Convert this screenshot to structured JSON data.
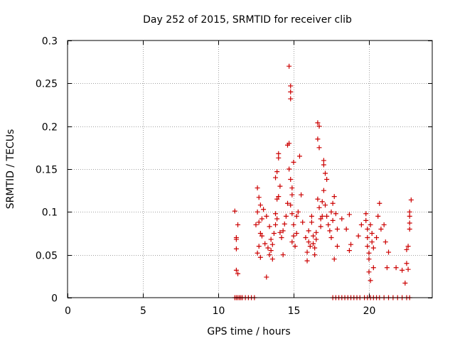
{
  "chart_data": {
    "type": "scatter",
    "title": "Day 252 of 2015, SRMTID for receiver clib",
    "xlabel": "GPS time / hours",
    "ylabel": "SRMTID / TECUs",
    "xlim": [
      0,
      24.2
    ],
    "ylim": [
      0,
      0.3
    ],
    "x_ticks": [
      0,
      5,
      10,
      15,
      20
    ],
    "y_ticks": [
      0,
      0.05,
      0.1,
      0.15,
      0.2,
      0.25,
      0.3
    ],
    "x_tick_labels": [
      "0",
      "5",
      "10",
      "15",
      "20"
    ],
    "y_tick_labels": [
      "0",
      "0.05",
      "0.1",
      "0.15",
      "0.2",
      "0.25",
      "0.3"
    ],
    "grid": true,
    "marker": "+",
    "colors": {
      "points": "#cc0000",
      "grid": "#a0a0a0",
      "axes": "#000000"
    },
    "series": [
      {
        "name": "SRMTID",
        "points": [
          [
            11.1,
            0.101
          ],
          [
            11.2,
            0.07
          ],
          [
            11.2,
            0.057
          ],
          [
            11.3,
            0.085
          ],
          [
            11.2,
            0.032
          ],
          [
            11.3,
            0.028
          ],
          [
            11.2,
            0.068
          ],
          [
            11.1,
            0
          ],
          [
            11.2,
            0
          ],
          [
            11.3,
            0
          ],
          [
            11.4,
            0
          ],
          [
            11.5,
            0
          ],
          [
            11.6,
            0
          ],
          [
            11.8,
            0
          ],
          [
            12.0,
            0
          ],
          [
            12.2,
            0
          ],
          [
            12.4,
            0
          ],
          [
            12.5,
            0.085
          ],
          [
            12.6,
            0.1
          ],
          [
            12.6,
            0.128
          ],
          [
            12.7,
            0.117
          ],
          [
            12.8,
            0.108
          ],
          [
            12.9,
            0.092
          ],
          [
            12.8,
            0.075
          ],
          [
            12.7,
            0.06
          ],
          [
            12.6,
            0.052
          ],
          [
            12.8,
            0.047
          ],
          [
            12.9,
            0.072
          ],
          [
            12.7,
            0.088
          ],
          [
            13.0,
            0.103
          ],
          [
            13.1,
            0.063
          ],
          [
            13.2,
            0.024
          ],
          [
            13.3,
            0.058
          ],
          [
            13.2,
            0.095
          ],
          [
            13.4,
            0.083
          ],
          [
            13.5,
            0.068
          ],
          [
            13.5,
            0.055
          ],
          [
            13.6,
            0.045
          ],
          [
            13.4,
            0.05
          ],
          [
            13.6,
            0.062
          ],
          [
            13.7,
            0.075
          ],
          [
            13.8,
            0.098
          ],
          [
            13.9,
            0.115
          ],
          [
            13.9,
            0.147
          ],
          [
            13.8,
            0.14
          ],
          [
            14.0,
            0.168
          ],
          [
            14.0,
            0.163
          ],
          [
            14.1,
            0.13
          ],
          [
            14.0,
            0.118
          ],
          [
            13.9,
            0.092
          ],
          [
            13.8,
            0.085
          ],
          [
            14.1,
            0.076
          ],
          [
            14.2,
            0.07
          ],
          [
            14.3,
            0.05
          ],
          [
            14.3,
            0.078
          ],
          [
            14.4,
            0.086
          ],
          [
            14.5,
            0.095
          ],
          [
            14.6,
            0.11
          ],
          [
            14.6,
            0.178
          ],
          [
            14.7,
            0.18
          ],
          [
            14.7,
            0.15
          ],
          [
            14.7,
            0.27
          ],
          [
            14.8,
            0.247
          ],
          [
            14.8,
            0.24
          ],
          [
            14.8,
            0.232
          ],
          [
            14.8,
            0.138
          ],
          [
            14.9,
            0.128
          ],
          [
            14.9,
            0.12
          ],
          [
            14.8,
            0.108
          ],
          [
            14.9,
            0.098
          ],
          [
            15.0,
            0.158
          ],
          [
            15.0,
            0.085
          ],
          [
            15.0,
            0.072
          ],
          [
            14.9,
            0.065
          ],
          [
            15.1,
            0.06
          ],
          [
            15.2,
            0.075
          ],
          [
            15.2,
            0.095
          ],
          [
            15.3,
            0.1
          ],
          [
            15.4,
            0.165
          ],
          [
            15.5,
            0.12
          ],
          [
            15.6,
            0.088
          ],
          [
            15.8,
            0.07
          ],
          [
            15.9,
            0.053
          ],
          [
            15.9,
            0.043
          ],
          [
            16.0,
            0.065
          ],
          [
            16.0,
            0.078
          ],
          [
            16.1,
            0.06
          ],
          [
            16.2,
            0.095
          ],
          [
            16.2,
            0.088
          ],
          [
            16.3,
            0.072
          ],
          [
            16.3,
            0.063
          ],
          [
            16.4,
            0.058
          ],
          [
            16.4,
            0.05
          ],
          [
            16.5,
            0.068
          ],
          [
            16.5,
            0.076
          ],
          [
            16.6,
            0.204
          ],
          [
            16.6,
            0.185
          ],
          [
            16.7,
            0.175
          ],
          [
            16.7,
            0.2
          ],
          [
            16.6,
            0.115
          ],
          [
            16.7,
            0.105
          ],
          [
            16.8,
            0.092
          ],
          [
            16.8,
            0.083
          ],
          [
            16.9,
            0.095
          ],
          [
            16.9,
            0.112
          ],
          [
            17.0,
            0.125
          ],
          [
            17.0,
            0.16
          ],
          [
            17.0,
            0.155
          ],
          [
            17.1,
            0.145
          ],
          [
            17.2,
            0.138
          ],
          [
            17.1,
            0.108
          ],
          [
            17.2,
            0.095
          ],
          [
            17.3,
            0.085
          ],
          [
            17.4,
            0.078
          ],
          [
            17.5,
            0.07
          ],
          [
            17.5,
            0.1
          ],
          [
            17.6,
            0.09
          ],
          [
            17.6,
            0.11
          ],
          [
            17.7,
            0.118
          ],
          [
            17.8,
            0.098
          ],
          [
            17.9,
            0.08
          ],
          [
            17.9,
            0.06
          ],
          [
            17.7,
            0.045
          ],
          [
            17.6,
            0
          ],
          [
            17.8,
            0
          ],
          [
            18.0,
            0
          ],
          [
            18.2,
            0
          ],
          [
            18.4,
            0
          ],
          [
            18.6,
            0
          ],
          [
            18.8,
            0
          ],
          [
            19.0,
            0
          ],
          [
            19.2,
            0
          ],
          [
            19.4,
            0
          ],
          [
            18.2,
            0.092
          ],
          [
            18.5,
            0.08
          ],
          [
            18.7,
            0.097
          ],
          [
            18.7,
            0.055
          ],
          [
            18.8,
            0.062
          ],
          [
            19.3,
            0.072
          ],
          [
            19.5,
            0.085
          ],
          [
            19.8,
            0.098
          ],
          [
            19.8,
            0.09
          ],
          [
            19.9,
            0.08
          ],
          [
            19.9,
            0.07
          ],
          [
            19.9,
            0.06
          ],
          [
            20.0,
            0.052
          ],
          [
            20.0,
            0.045
          ],
          [
            20.0,
            0.03
          ],
          [
            20.1,
            0.02
          ],
          [
            20.1,
            0.085
          ],
          [
            20.2,
            0.075
          ],
          [
            20.2,
            0.065
          ],
          [
            20.3,
            0.058
          ],
          [
            20.3,
            0.035
          ],
          [
            20.5,
            0.07
          ],
          [
            20.6,
            0.095
          ],
          [
            20.7,
            0.11
          ],
          [
            20.8,
            0.08
          ],
          [
            21.0,
            0.085
          ],
          [
            21.1,
            0.065
          ],
          [
            21.2,
            0.035
          ],
          [
            21.3,
            0.053
          ],
          [
            19.7,
            0
          ],
          [
            19.9,
            0
          ],
          [
            20.1,
            0
          ],
          [
            20.3,
            0
          ],
          [
            20.5,
            0
          ],
          [
            20.7,
            0
          ],
          [
            21.0,
            0
          ],
          [
            21.3,
            0
          ],
          [
            21.6,
            0
          ],
          [
            21.9,
            0
          ],
          [
            22.2,
            0
          ],
          [
            22.5,
            0
          ],
          [
            22.7,
            0
          ],
          [
            21.8,
            0.035
          ],
          [
            22.2,
            0.032
          ],
          [
            22.4,
            0.017
          ],
          [
            22.5,
            0.04
          ],
          [
            22.5,
            0.056
          ],
          [
            22.6,
            0.06
          ],
          [
            22.7,
            0.08
          ],
          [
            22.7,
            0.087
          ],
          [
            22.7,
            0.1
          ],
          [
            22.8,
            0.114
          ],
          [
            22.7,
            0.095
          ],
          [
            22.6,
            0.033
          ]
        ]
      }
    ]
  }
}
